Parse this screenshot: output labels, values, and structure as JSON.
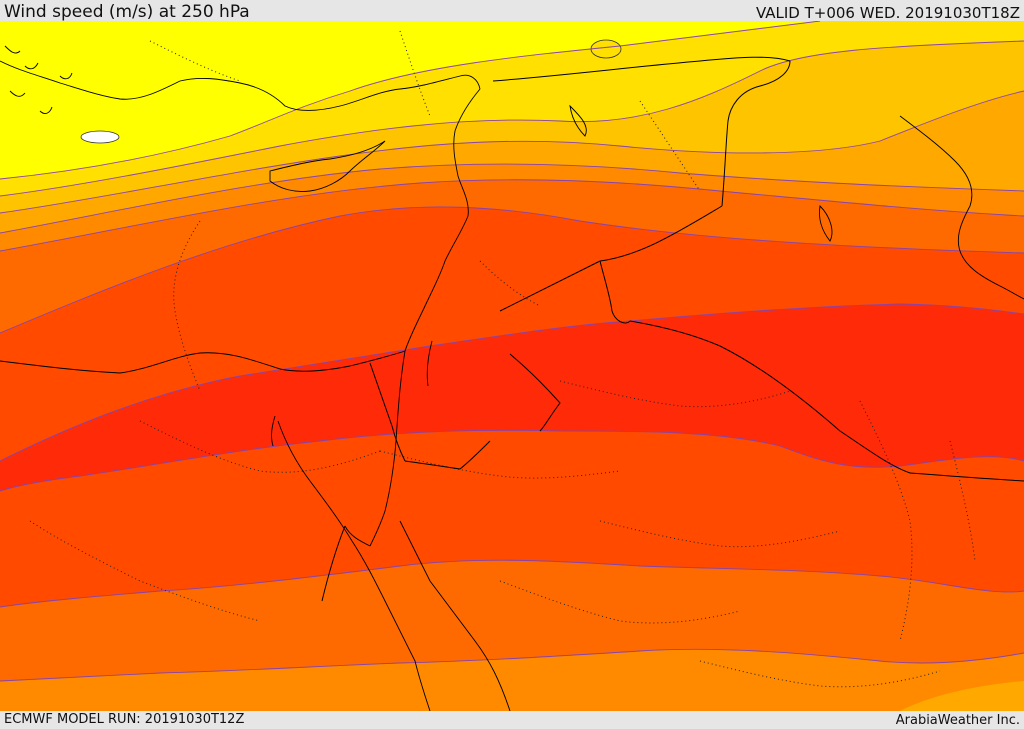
{
  "header": {
    "title": "Wind speed (m/s) at 250 hPa",
    "valid": "VALID T+006 WED. 20191030T18Z"
  },
  "footer": {
    "model_run": "ECMWF MODEL RUN: 20191030T12Z",
    "credit": "ArabiaWeather Inc."
  },
  "map": {
    "field": "Wind speed",
    "level": "250 hPa",
    "band_colors": [
      "#ffff00",
      "#ffe000",
      "#ffc400",
      "#ffa800",
      "#ff8a00",
      "#ff6a00",
      "#ff4a00",
      "#ff2a08"
    ],
    "low_wind_color": "#ffffff",
    "isotach_color": "#8844aa",
    "coastline_color": "#000000",
    "border_style": "dotted"
  }
}
